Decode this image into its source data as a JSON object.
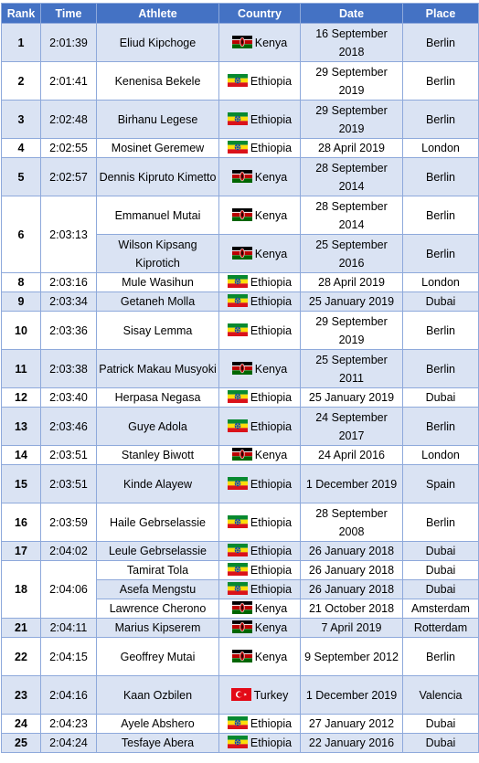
{
  "headers": {
    "rank": "Rank",
    "time": "Time",
    "athlete": "Athlete",
    "country": "Country",
    "date": "Date",
    "place": "Place"
  },
  "countries": {
    "kenya": {
      "name": "Kenya",
      "flag": "kenya-flag"
    },
    "ethiopia": {
      "name": "Ethiopia",
      "flag": "ethiopia-flag"
    },
    "turkey": {
      "name": "Turkey",
      "flag": "turkey-flag"
    }
  },
  "rows": [
    {
      "rank": "1",
      "time": "2:01:39",
      "athlete": "Eliud Kipchoge",
      "country": "Kenya",
      "date": "16 September 2018",
      "place": "Berlin"
    },
    {
      "rank": "2",
      "time": "2:01:41",
      "athlete": "Kenenisa Bekele",
      "country": "Ethiopia",
      "date": "29 September 2019",
      "place": "Berlin"
    },
    {
      "rank": "3",
      "time": "2:02:48",
      "athlete": "Birhanu Legese",
      "country": "Ethiopia",
      "date": "29 September 2019",
      "place": "Berlin"
    },
    {
      "rank": "4",
      "time": "2:02:55",
      "athlete": "Mosinet Geremew",
      "country": "Ethiopia",
      "date": "28 April 2019",
      "place": "London"
    },
    {
      "rank": "5",
      "time": "2:02:57",
      "athlete": "Dennis Kipruto Kimetto",
      "country": "Kenya",
      "date": "28 September 2014",
      "place": "Berlin"
    },
    {
      "rank": "6",
      "time": "2:03:13",
      "athlete": "Emmanuel Mutai",
      "country": "Kenya",
      "date": "28 September 2014",
      "place": "Berlin"
    },
    {
      "rank": "",
      "time": "",
      "athlete": "Wilson Kipsang Kiprotich",
      "country": "Kenya",
      "date": "25 September 2016",
      "place": "Berlin"
    },
    {
      "rank": "8",
      "time": "2:03:16",
      "athlete": "Mule Wasihun",
      "country": "Ethiopia",
      "date": "28 April 2019",
      "place": "London"
    },
    {
      "rank": "9",
      "time": "2:03:34",
      "athlete": "Getaneh Molla",
      "country": "Ethiopia",
      "date": "25 January 2019",
      "place": "Dubai"
    },
    {
      "rank": "10",
      "time": "2:03:36",
      "athlete": "Sisay Lemma",
      "country": "Ethiopia",
      "date": "29 September 2019",
      "place": "Berlin"
    },
    {
      "rank": "11",
      "time": "2:03:38",
      "athlete": "Patrick Makau Musyoki",
      "country": "Kenya",
      "date": "25 September 2011",
      "place": "Berlin"
    },
    {
      "rank": "12",
      "time": "2:03:40",
      "athlete": "Herpasa Negasa",
      "country": "Ethiopia",
      "date": "25 January 2019",
      "place": "Dubai"
    },
    {
      "rank": "13",
      "time": "2:03:46",
      "athlete": "Guye Adola",
      "country": "Ethiopia",
      "date": "24 September 2017",
      "place": "Berlin"
    },
    {
      "rank": "14",
      "time": "2:03:51",
      "athlete": "Stanley Biwott",
      "country": "Kenya",
      "date": "24 April 2016",
      "place": "London"
    },
    {
      "rank": "15",
      "time": "2:03:51",
      "athlete": "Kinde Alayew",
      "country": "Ethiopia",
      "date": "1 December 2019",
      "place": "Spain"
    },
    {
      "rank": "16",
      "time": "2:03:59",
      "athlete": "Haile Gebrselassie",
      "country": "Ethiopia",
      "date": "28 September 2008",
      "place": "Berlin"
    },
    {
      "rank": "17",
      "time": "2:04:02",
      "athlete": "Leule Gebrselassie",
      "country": "Ethiopia",
      "date": "26 January 2018",
      "place": "Dubai"
    },
    {
      "rank": "18",
      "time": "2:04:06",
      "athlete": "Tamirat Tola",
      "country": "Ethiopia",
      "date": "26 January 2018",
      "place": "Dubai"
    },
    {
      "rank": "",
      "time": "",
      "athlete": "Asefa Mengstu",
      "country": "Ethiopia",
      "date": "26 January 2018",
      "place": "Dubai"
    },
    {
      "rank": "",
      "time": "",
      "athlete": "Lawrence Cherono",
      "country": "Kenya",
      "date": "21 October 2018",
      "place": "Amsterdam"
    },
    {
      "rank": "21",
      "time": "2:04:11",
      "athlete": "Marius Kipserem",
      "country": "Kenya",
      "date": "7 April 2019",
      "place": "Rotterdam"
    },
    {
      "rank": "22",
      "time": "2:04:15",
      "athlete": "Geoffrey Mutai",
      "country": "Kenya",
      "date": "9 September 2012",
      "place": "Berlin"
    },
    {
      "rank": "23",
      "time": "2:04:16",
      "athlete": "Kaan Ozbilen",
      "country": "Turkey",
      "date": "1 December 2019",
      "place": "Valencia"
    },
    {
      "rank": "24",
      "time": "2:04:23",
      "athlete": "Ayele Abshero",
      "country": "Ethiopia",
      "date": "27 January 2012",
      "place": "Dubai"
    },
    {
      "rank": "25",
      "time": "2:04:24",
      "athlete": "Tesfaye Abera",
      "country": "Ethiopia",
      "date": "22 January 2016",
      "place": "Dubai"
    }
  ],
  "colors": {
    "header": "#4472c4",
    "shade": "#dae3f3",
    "border": "#8ea9db"
  }
}
